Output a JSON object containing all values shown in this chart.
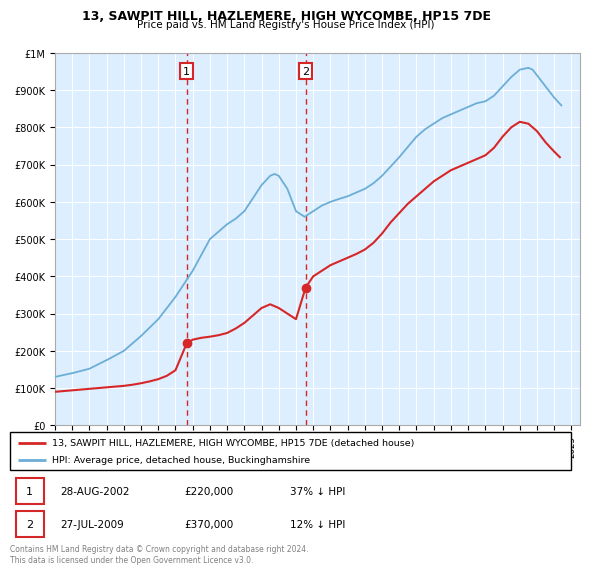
{
  "title": "13, SAWPIT HILL, HAZLEMERE, HIGH WYCOMBE, HP15 7DE",
  "subtitle": "Price paid vs. HM Land Registry's House Price Index (HPI)",
  "legend_line1": "13, SAWPIT HILL, HAZLEMERE, HIGH WYCOMBE, HP15 7DE (detached house)",
  "legend_line2": "HPI: Average price, detached house, Buckinghamshire",
  "transaction1_date": "28-AUG-2002",
  "transaction1_price": 220000,
  "transaction1_pct": "37% ↓ HPI",
  "transaction2_date": "27-JUL-2009",
  "transaction2_price": 370000,
  "transaction2_pct": "12% ↓ HPI",
  "footer": "Contains HM Land Registry data © Crown copyright and database right 2024.\nThis data is licensed under the Open Government Licence v3.0.",
  "hpi_color": "#6baed6",
  "price_color": "#d62728",
  "marker_color": "#d62728",
  "background_color": "#ddeeff",
  "ylim": [
    0,
    1000000
  ],
  "xlim_start": 1995.0,
  "xlim_end": 2025.5,
  "transaction1_year": 2002.65,
  "transaction2_year": 2009.56
}
